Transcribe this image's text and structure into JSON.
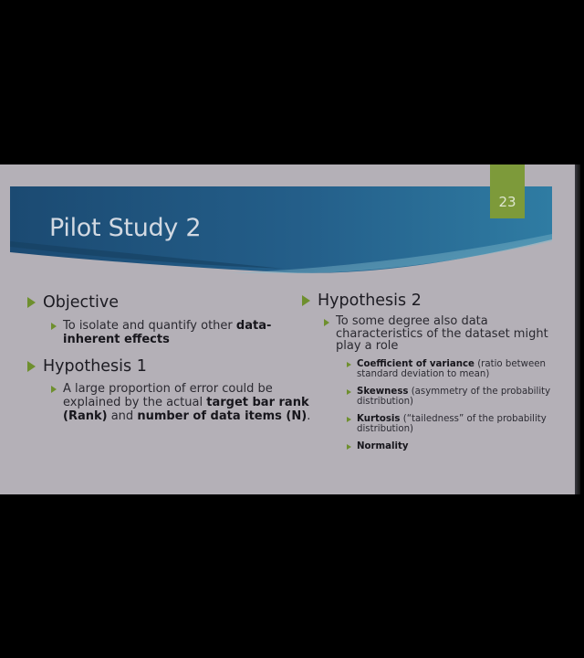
{
  "slide": {
    "title": "Pilot Study 2",
    "page_number": "23",
    "colors": {
      "banner_dark": "#1f4f78",
      "banner_light": "#3a90b0",
      "accent_green": "#7d9a3a",
      "slide_bg": "#b4b0b7"
    }
  },
  "left": {
    "objective": {
      "heading": "Objective",
      "line1_text": "To isolate and quantify other ",
      "line1_bold": "data-",
      "line2_bold": "inherent effects"
    },
    "hypothesis1": {
      "heading": "Hypothesis 1",
      "line1": "A large proportion of error could be",
      "line2_text": "explained by the actual ",
      "line2_bold": "target bar rank",
      "line3_bold1": "(Rank)",
      "line3_text": " and ",
      "line3_bold2": "number of data items (N)",
      "line3_end": "."
    }
  },
  "right": {
    "hypothesis2": {
      "heading": "Hypothesis 2",
      "intro_line1": "To some degree also data",
      "intro_line2": "characteristics of the dataset might",
      "intro_line3": "play a role",
      "items": [
        {
          "bold": "Coefficient of variance",
          "text1": " (ratio between",
          "text2": "standard deviation to mean)"
        },
        {
          "bold": "Skewness",
          "text1": " (asymmetry of the probability",
          "text2": "distribution)"
        },
        {
          "bold": "Kurtosis",
          "text1": " (“tailedness” of the probability",
          "text2": "distribution)"
        },
        {
          "bold": "Normality",
          "text1": "",
          "text2": ""
        }
      ]
    }
  }
}
